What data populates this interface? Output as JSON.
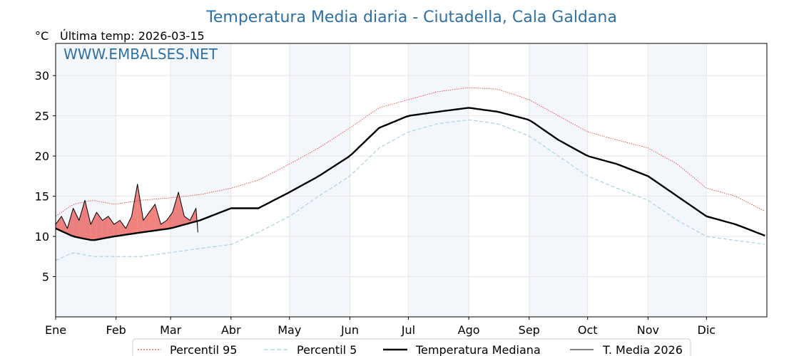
{
  "chart_data": {
    "type": "line",
    "title": "Temperatura Media diaria - Ciutadella, Cala Galdana",
    "y_unit": "°C",
    "last_temp_label": "Última temp: 2026-03-15",
    "watermark": "WWW.EMBALSES.NET",
    "xlabel": "",
    "ylabel": "",
    "x_domain_days": [
      1,
      366
    ],
    "ylim": [
      0,
      34
    ],
    "yticks": [
      5,
      10,
      15,
      20,
      25,
      30
    ],
    "month_ticks": [
      {
        "label": "Ene",
        "day": 1
      },
      {
        "label": "Feb",
        "day": 32
      },
      {
        "label": "Mar",
        "day": 60
      },
      {
        "label": "Abr",
        "day": 91
      },
      {
        "label": "May",
        "day": 121
      },
      {
        "label": "Jun",
        "day": 152
      },
      {
        "label": "Jul",
        "day": 182
      },
      {
        "label": "Ago",
        "day": 213
      },
      {
        "label": "Sep",
        "day": 244
      },
      {
        "label": "Oct",
        "day": 274
      },
      {
        "label": "Nov",
        "day": 305
      },
      {
        "label": "Dic",
        "day": 335
      }
    ],
    "grid": true,
    "legend_position": "bottom",
    "series": [
      {
        "name": "Percentil 95",
        "color": "#e8312a",
        "style": "dotted",
        "anchors": [
          [
            1,
            12.5
          ],
          [
            10,
            14
          ],
          [
            20,
            14.5
          ],
          [
            31,
            14
          ],
          [
            45,
            14.5
          ],
          [
            60,
            14.8
          ],
          [
            75,
            15.2
          ],
          [
            91,
            16
          ],
          [
            105,
            17
          ],
          [
            121,
            19
          ],
          [
            136,
            21
          ],
          [
            152,
            23.5
          ],
          [
            167,
            26
          ],
          [
            182,
            27
          ],
          [
            197,
            28
          ],
          [
            213,
            28.5
          ],
          [
            228,
            28.3
          ],
          [
            244,
            27
          ],
          [
            259,
            25
          ],
          [
            274,
            23
          ],
          [
            289,
            22
          ],
          [
            305,
            21
          ],
          [
            320,
            19
          ],
          [
            335,
            16
          ],
          [
            350,
            15
          ],
          [
            366,
            13
          ]
        ]
      },
      {
        "name": "Percentil 5",
        "color": "#9fd0e0",
        "style": "dashed",
        "anchors": [
          [
            1,
            7
          ],
          [
            10,
            8
          ],
          [
            20,
            7.5
          ],
          [
            31,
            7.5
          ],
          [
            45,
            7.5
          ],
          [
            60,
            8
          ],
          [
            75,
            8.5
          ],
          [
            91,
            9
          ],
          [
            105,
            10.5
          ],
          [
            121,
            12.5
          ],
          [
            136,
            15
          ],
          [
            152,
            17.5
          ],
          [
            167,
            21
          ],
          [
            182,
            23
          ],
          [
            197,
            24
          ],
          [
            213,
            24.5
          ],
          [
            228,
            24
          ],
          [
            244,
            22.5
          ],
          [
            259,
            20
          ],
          [
            274,
            17.5
          ],
          [
            289,
            16
          ],
          [
            305,
            14.5
          ],
          [
            320,
            12
          ],
          [
            335,
            10
          ],
          [
            350,
            9.5
          ],
          [
            366,
            9
          ]
        ]
      },
      {
        "name": "Temperatura Mediana",
        "color": "#000000",
        "style": "solid-thick",
        "anchors": [
          [
            1,
            11
          ],
          [
            10,
            10
          ],
          [
            20,
            9.5
          ],
          [
            31,
            10
          ],
          [
            45,
            10.5
          ],
          [
            60,
            11
          ],
          [
            75,
            12
          ],
          [
            91,
            13.5
          ],
          [
            105,
            13.5
          ],
          [
            121,
            15.5
          ],
          [
            136,
            17.5
          ],
          [
            152,
            20
          ],
          [
            167,
            23.5
          ],
          [
            182,
            25
          ],
          [
            197,
            25.5
          ],
          [
            213,
            26
          ],
          [
            228,
            25.5
          ],
          [
            244,
            24.5
          ],
          [
            259,
            22
          ],
          [
            274,
            20
          ],
          [
            289,
            19
          ],
          [
            305,
            17.5
          ],
          [
            320,
            15
          ],
          [
            335,
            12.5
          ],
          [
            350,
            11.5
          ],
          [
            366,
            10
          ]
        ]
      },
      {
        "name": "T. Media 2026",
        "color": "#000000",
        "style": "solid-thin",
        "x": [
          1,
          4,
          7,
          10,
          13,
          16,
          19,
          22,
          25,
          28,
          31,
          34,
          37,
          40,
          43,
          46,
          49,
          52,
          55,
          58,
          61,
          64,
          67,
          70,
          73,
          74
        ],
        "values": [
          11.5,
          12.5,
          11,
          13.5,
          12,
          14.5,
          11.5,
          13,
          12,
          12.5,
          11.5,
          12,
          11,
          12.5,
          16.5,
          12,
          13,
          14,
          11.5,
          12,
          13,
          15.5,
          12.5,
          12,
          13.5,
          10.5
        ]
      }
    ],
    "fill_above_median_color": "#e8312a",
    "fill_below_median_color": "#9fd0e0"
  }
}
